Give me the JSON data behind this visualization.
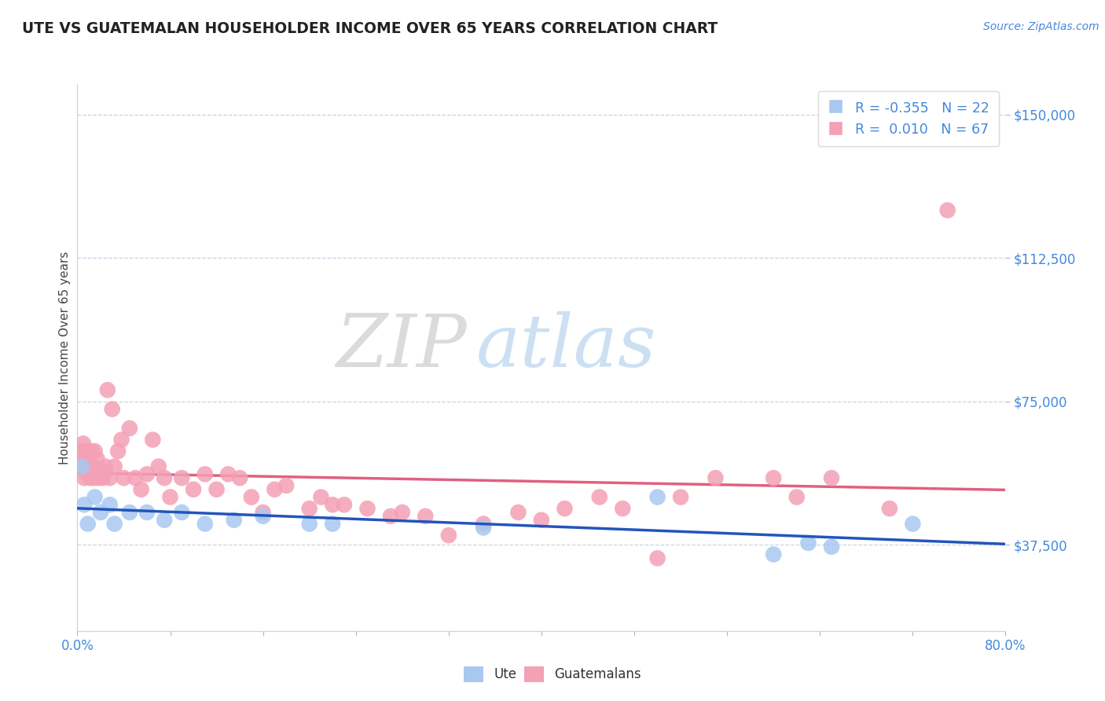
{
  "title": "UTE VS GUATEMALAN HOUSEHOLDER INCOME OVER 65 YEARS CORRELATION CHART",
  "source": "Source: ZipAtlas.com",
  "ylabel": "Householder Income Over 65 years",
  "xlim": [
    0.0,
    80.0
  ],
  "ylim": [
    15000,
    158000
  ],
  "yticks": [
    37500,
    75000,
    112500,
    150000
  ],
  "ytick_labels": [
    "$37,500",
    "$75,000",
    "$112,500",
    "$150,000"
  ],
  "ute_color": "#a8c8f0",
  "guat_color": "#f4a0b5",
  "ute_line_color": "#2255bb",
  "guat_line_color": "#e06080",
  "ute_R": "-0.355",
  "ute_N": "22",
  "guat_R": "0.010",
  "guat_N": "67",
  "watermark_zip": "ZIP",
  "watermark_atlas": "atlas",
  "background_color": "#ffffff",
  "ute_x": [
    0.4,
    0.6,
    0.9,
    1.5,
    2.0,
    2.8,
    3.2,
    4.5,
    6.0,
    7.5,
    9.0,
    11.0,
    13.5,
    16.0,
    20.0,
    22.0,
    35.0,
    50.0,
    60.0,
    63.0,
    65.0,
    72.0
  ],
  "ute_y": [
    58000,
    48000,
    43000,
    50000,
    46000,
    48000,
    43000,
    46000,
    46000,
    44000,
    46000,
    43000,
    44000,
    45000,
    43000,
    43000,
    42000,
    50000,
    35000,
    38000,
    37000,
    43000
  ],
  "guat_x": [
    0.2,
    0.35,
    0.5,
    0.6,
    0.7,
    0.8,
    0.9,
    1.0,
    1.1,
    1.2,
    1.3,
    1.4,
    1.5,
    1.6,
    1.7,
    1.8,
    2.0,
    2.2,
    2.4,
    2.6,
    2.8,
    3.0,
    3.2,
    3.5,
    3.8,
    4.0,
    4.5,
    5.0,
    5.5,
    6.0,
    6.5,
    7.0,
    7.5,
    8.0,
    9.0,
    10.0,
    11.0,
    12.0,
    13.0,
    14.0,
    15.0,
    16.0,
    17.0,
    18.0,
    20.0,
    21.0,
    22.0,
    23.0,
    25.0,
    27.0,
    28.0,
    30.0,
    32.0,
    35.0,
    38.0,
    40.0,
    42.0,
    45.0,
    47.0,
    50.0,
    52.0,
    55.0,
    60.0,
    62.0,
    65.0,
    70.0,
    75.0
  ],
  "guat_y": [
    62000,
    60000,
    64000,
    55000,
    58000,
    62000,
    56000,
    60000,
    55000,
    62000,
    58000,
    55000,
    62000,
    56000,
    60000,
    55000,
    57000,
    55000,
    58000,
    78000,
    55000,
    73000,
    58000,
    62000,
    65000,
    55000,
    68000,
    55000,
    52000,
    56000,
    65000,
    58000,
    55000,
    50000,
    55000,
    52000,
    56000,
    52000,
    56000,
    55000,
    50000,
    46000,
    52000,
    53000,
    47000,
    50000,
    48000,
    48000,
    47000,
    45000,
    46000,
    45000,
    40000,
    43000,
    46000,
    44000,
    47000,
    50000,
    47000,
    34000,
    50000,
    55000,
    55000,
    50000,
    55000,
    47000,
    125000
  ]
}
